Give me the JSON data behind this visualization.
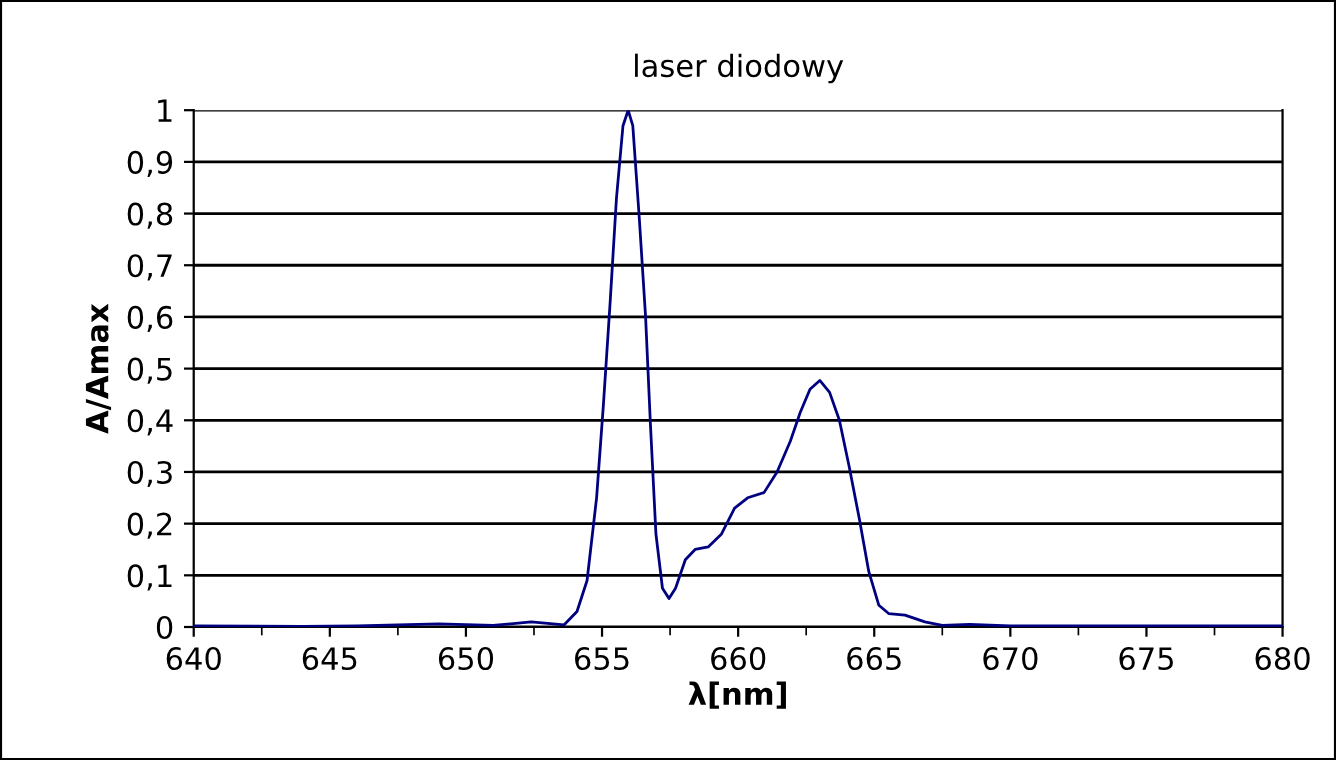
{
  "chart_data": {
    "type": "line",
    "title": "laser diodowy",
    "xlabel": "λ[nm]",
    "ylabel": "A/Amax",
    "series": [
      {
        "color": "#000080",
        "x": [
          640,
          644,
          646,
          649,
          651,
          652.4,
          653.6,
          654.08,
          654.45,
          654.8,
          655.05,
          655.3,
          655.53,
          655.77,
          655.96,
          656.13,
          656.37,
          656.6,
          656.78,
          656.98,
          657.22,
          657.46,
          657.7,
          658.06,
          658.42,
          658.9,
          659.39,
          659.87,
          660.35,
          660.95,
          661.43,
          661.92,
          662.28,
          662.64,
          663.0,
          663.36,
          663.72,
          664.08,
          664.45,
          664.8,
          665.17,
          665.53,
          666.13,
          666.86,
          667.5,
          668.5,
          670,
          675,
          680
        ],
        "values": [
          0.002,
          0.001,
          0.002,
          0.006,
          0.003,
          0.01,
          0.004,
          0.03,
          0.09,
          0.25,
          0.43,
          0.63,
          0.83,
          0.97,
          1.0,
          0.97,
          0.79,
          0.6,
          0.39,
          0.18,
          0.075,
          0.055,
          0.075,
          0.13,
          0.15,
          0.155,
          0.18,
          0.23,
          0.25,
          0.26,
          0.3,
          0.36,
          0.415,
          0.46,
          0.477,
          0.454,
          0.4,
          0.31,
          0.21,
          0.107,
          0.042,
          0.026,
          0.023,
          0.01,
          0.003,
          0.005,
          0.002,
          0.002,
          0.002
        ]
      }
    ],
    "xlim": [
      640,
      680
    ],
    "xticks": [
      640,
      645,
      650,
      655,
      660,
      665,
      670,
      675,
      680
    ],
    "ylim": [
      0,
      1
    ],
    "yticks": [
      0,
      {
        "value": 0.1,
        "label": "0,1"
      },
      {
        "value": 0.2,
        "label": "0,2"
      },
      {
        "value": 0.3,
        "label": "0,3"
      },
      {
        "value": 0.4,
        "label": "0,4"
      },
      {
        "value": 0.5,
        "label": "0,5"
      },
      {
        "value": 0.6,
        "label": "0,6"
      },
      {
        "value": 0.7,
        "label": "0,7"
      },
      {
        "value": 0.8,
        "label": "0,8"
      },
      {
        "value": 0.9,
        "label": "0,9"
      },
      1
    ],
    "grid": "y",
    "legend": false,
    "marker": "none",
    "line_style": "solid"
  }
}
